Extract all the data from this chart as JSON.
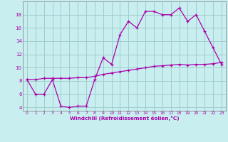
{
  "x": [
    0,
    1,
    2,
    3,
    4,
    5,
    6,
    7,
    8,
    9,
    10,
    11,
    12,
    13,
    14,
    15,
    16,
    17,
    18,
    19,
    20,
    21,
    22,
    23
  ],
  "line1": [
    8.2,
    6.0,
    6.0,
    8.2,
    4.2,
    4.0,
    4.2,
    4.2,
    8.2,
    11.5,
    10.5,
    15.0,
    17.0,
    16.0,
    18.5,
    18.5,
    18.0,
    18.0,
    19.0,
    17.0,
    18.0,
    15.5,
    13.0,
    10.5
  ],
  "line2": [
    8.2,
    8.2,
    8.4,
    8.4,
    8.4,
    8.4,
    8.5,
    8.5,
    8.7,
    9.0,
    9.2,
    9.4,
    9.6,
    9.8,
    10.0,
    10.2,
    10.3,
    10.4,
    10.5,
    10.4,
    10.5,
    10.5,
    10.6,
    10.8
  ],
  "line_color": "#aa00aa",
  "bg_color": "#c8eef0",
  "grid_color": "#a0cccc",
  "xlabel": "Windchill (Refroidissement éolien,°C)",
  "xlim": [
    -0.5,
    23.5
  ],
  "ylim": [
    3.5,
    20.0
  ],
  "yticks": [
    4,
    6,
    8,
    10,
    12,
    14,
    16,
    18
  ],
  "xticks": [
    0,
    1,
    2,
    3,
    4,
    5,
    6,
    7,
    8,
    9,
    10,
    11,
    12,
    13,
    14,
    15,
    16,
    17,
    18,
    19,
    20,
    21,
    22,
    23
  ]
}
